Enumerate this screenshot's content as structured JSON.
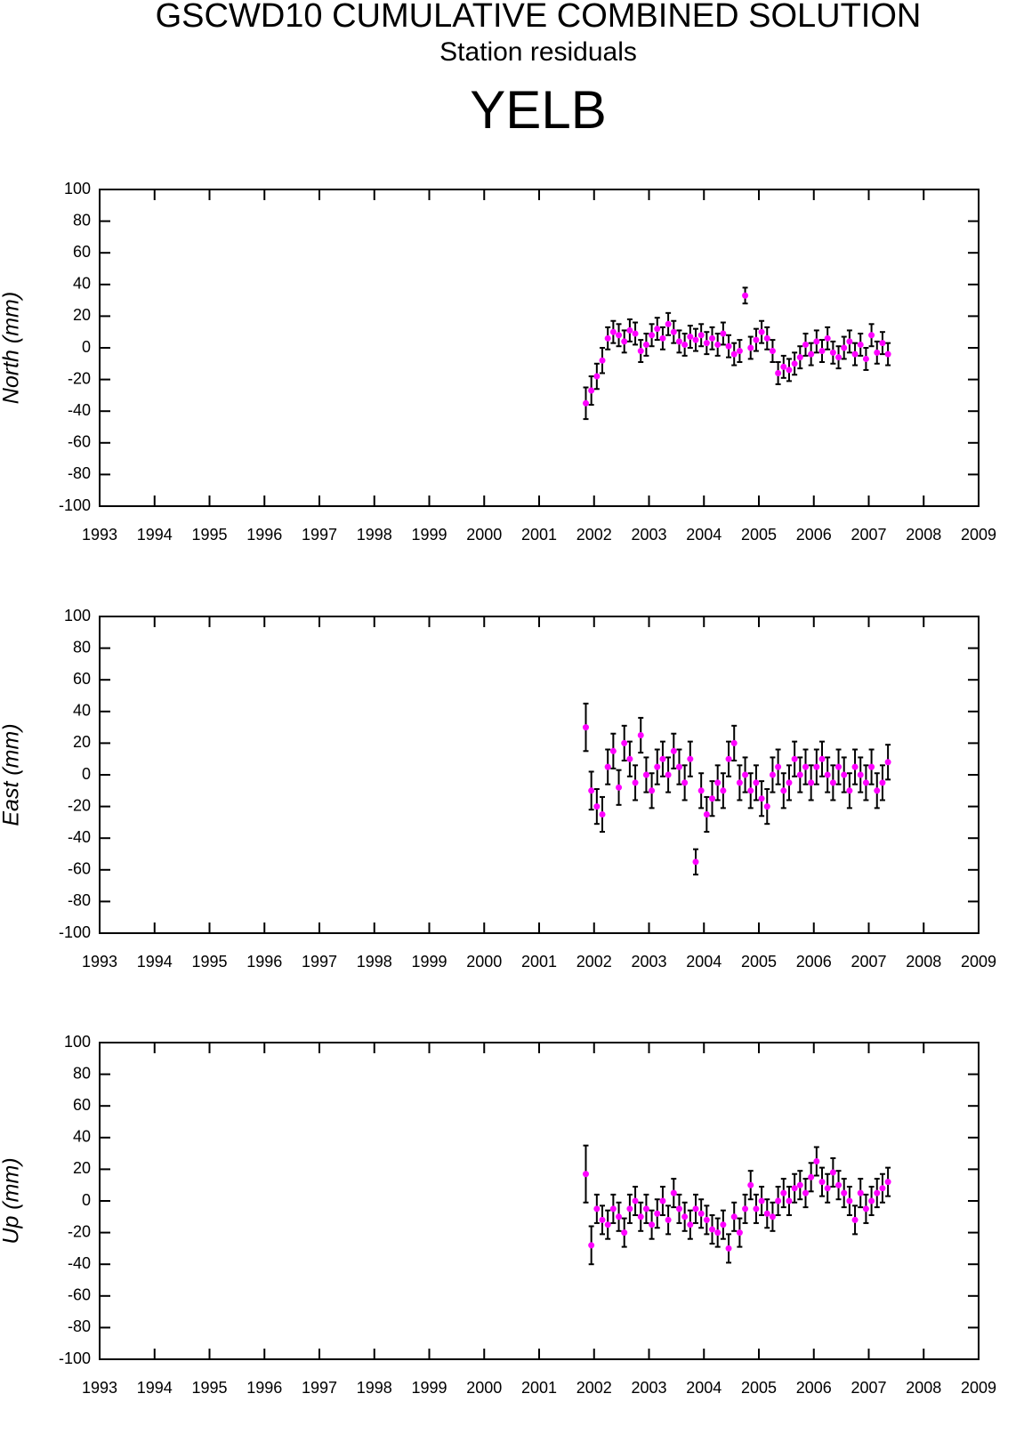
{
  "header": {
    "title": "GSCWD10 CUMULATIVE COMBINED SOLUTION",
    "subtitle": "Station residuals",
    "station": "YELB"
  },
  "chart_data": [
    {
      "type": "scatter",
      "ylabel": "North (mm)",
      "color": "#ff00ff",
      "error_color": "#000000",
      "xlim": [
        1993,
        2009
      ],
      "xticks": [
        1993,
        1994,
        1995,
        1996,
        1997,
        1998,
        1999,
        2000,
        2001,
        2002,
        2003,
        2004,
        2005,
        2006,
        2007,
        2008,
        2009
      ],
      "ylim": [
        -100,
        100
      ],
      "yticks": [
        -100,
        -80,
        -60,
        -40,
        -20,
        0,
        20,
        40,
        60,
        80,
        100
      ],
      "x": [
        2001.85,
        2001.95,
        2002.05,
        2002.15,
        2002.25,
        2002.35,
        2002.45,
        2002.55,
        2002.65,
        2002.75,
        2002.85,
        2002.95,
        2003.05,
        2003.15,
        2003.25,
        2003.35,
        2003.45,
        2003.55,
        2003.65,
        2003.75,
        2003.85,
        2003.95,
        2004.05,
        2004.15,
        2004.25,
        2004.35,
        2004.45,
        2004.55,
        2004.65,
        2004.75,
        2004.85,
        2004.95,
        2005.05,
        2005.15,
        2005.25,
        2005.35,
        2005.45,
        2005.55,
        2005.65,
        2005.75,
        2005.85,
        2005.95,
        2006.05,
        2006.15,
        2006.25,
        2006.35,
        2006.45,
        2006.55,
        2006.65,
        2006.75,
        2006.85,
        2006.95,
        2007.05,
        2007.15,
        2007.25,
        2007.35
      ],
      "values": [
        -35,
        -27,
        -18,
        -8,
        6,
        10,
        8,
        4,
        11,
        9,
        -2,
        2,
        8,
        12,
        6,
        15,
        10,
        4,
        2,
        7,
        5,
        8,
        3,
        6,
        2,
        9,
        1,
        -4,
        -2,
        33,
        0,
        5,
        10,
        6,
        -2,
        -16,
        -12,
        -14,
        -10,
        -6,
        2,
        -4,
        4,
        -2,
        6,
        -3,
        -6,
        0,
        4,
        -4,
        2,
        -7,
        8,
        -3,
        3,
        -4
      ],
      "errors": [
        10,
        9,
        8,
        8,
        7,
        7,
        7,
        7,
        7,
        7,
        7,
        7,
        7,
        7,
        7,
        7,
        7,
        7,
        7,
        7,
        7,
        7,
        7,
        7,
        7,
        7,
        7,
        7,
        7,
        5,
        7,
        7,
        7,
        7,
        7,
        7,
        7,
        7,
        7,
        7,
        7,
        7,
        7,
        7,
        7,
        7,
        7,
        7,
        7,
        7,
        7,
        7,
        7,
        7,
        7,
        7
      ]
    },
    {
      "type": "scatter",
      "ylabel": "East (mm)",
      "color": "#ff00ff",
      "error_color": "#000000",
      "xlim": [
        1993,
        2009
      ],
      "xticks": [
        1993,
        1994,
        1995,
        1996,
        1997,
        1998,
        1999,
        2000,
        2001,
        2002,
        2003,
        2004,
        2005,
        2006,
        2007,
        2008,
        2009
      ],
      "ylim": [
        -100,
        100
      ],
      "yticks": [
        -100,
        -80,
        -60,
        -40,
        -20,
        0,
        20,
        40,
        60,
        80,
        100
      ],
      "x": [
        2001.85,
        2001.95,
        2002.05,
        2002.15,
        2002.25,
        2002.35,
        2002.45,
        2002.55,
        2002.65,
        2002.75,
        2002.85,
        2002.95,
        2003.05,
        2003.15,
        2003.25,
        2003.35,
        2003.45,
        2003.55,
        2003.65,
        2003.75,
        2003.85,
        2003.95,
        2004.05,
        2004.15,
        2004.25,
        2004.35,
        2004.45,
        2004.55,
        2004.65,
        2004.75,
        2004.85,
        2004.95,
        2005.05,
        2005.15,
        2005.25,
        2005.35,
        2005.45,
        2005.55,
        2005.65,
        2005.75,
        2005.85,
        2005.95,
        2006.05,
        2006.15,
        2006.25,
        2006.35,
        2006.45,
        2006.55,
        2006.65,
        2006.75,
        2006.85,
        2006.95,
        2007.05,
        2007.15,
        2007.25,
        2007.35
      ],
      "values": [
        30,
        -10,
        -20,
        -25,
        5,
        15,
        -8,
        20,
        10,
        -5,
        25,
        0,
        -10,
        5,
        10,
        0,
        15,
        5,
        -5,
        10,
        -55,
        -10,
        -25,
        -15,
        -5,
        -10,
        10,
        20,
        -5,
        0,
        -10,
        -5,
        -15,
        -20,
        0,
        5,
        -10,
        -5,
        10,
        0,
        5,
        -5,
        5,
        10,
        0,
        -5,
        5,
        0,
        -10,
        5,
        0,
        -5,
        5,
        -10,
        -5,
        8
      ],
      "errors": [
        15,
        12,
        11,
        11,
        11,
        11,
        11,
        11,
        11,
        11,
        11,
        11,
        11,
        11,
        11,
        11,
        11,
        11,
        11,
        11,
        8,
        11,
        11,
        11,
        11,
        11,
        11,
        11,
        11,
        11,
        11,
        11,
        11,
        11,
        11,
        11,
        11,
        11,
        11,
        11,
        11,
        11,
        11,
        11,
        11,
        11,
        11,
        11,
        11,
        11,
        11,
        11,
        11,
        11,
        11,
        11
      ]
    },
    {
      "type": "scatter",
      "ylabel": "Up (mm)",
      "color": "#ff00ff",
      "error_color": "#000000",
      "xlim": [
        1993,
        2009
      ],
      "xticks": [
        1993,
        1994,
        1995,
        1996,
        1997,
        1998,
        1999,
        2000,
        2001,
        2002,
        2003,
        2004,
        2005,
        2006,
        2007,
        2008,
        2009
      ],
      "ylim": [
        -100,
        100
      ],
      "yticks": [
        -100,
        -80,
        -60,
        -40,
        -20,
        0,
        20,
        40,
        60,
        80,
        100
      ],
      "x": [
        2001.85,
        2001.95,
        2002.05,
        2002.15,
        2002.25,
        2002.35,
        2002.45,
        2002.55,
        2002.65,
        2002.75,
        2002.85,
        2002.95,
        2003.05,
        2003.15,
        2003.25,
        2003.35,
        2003.45,
        2003.55,
        2003.65,
        2003.75,
        2003.85,
        2003.95,
        2004.05,
        2004.15,
        2004.25,
        2004.35,
        2004.45,
        2004.55,
        2004.65,
        2004.75,
        2004.85,
        2004.95,
        2005.05,
        2005.15,
        2005.25,
        2005.35,
        2005.45,
        2005.55,
        2005.65,
        2005.75,
        2005.85,
        2005.95,
        2006.05,
        2006.15,
        2006.25,
        2006.35,
        2006.45,
        2006.55,
        2006.65,
        2006.75,
        2006.85,
        2006.95,
        2007.05,
        2007.15,
        2007.25,
        2007.35
      ],
      "values": [
        17,
        -28,
        -5,
        -12,
        -15,
        -5,
        -10,
        -20,
        -5,
        0,
        -10,
        -5,
        -15,
        -8,
        0,
        -12,
        5,
        -5,
        -10,
        -15,
        -5,
        -8,
        -12,
        -18,
        -20,
        -15,
        -30,
        -10,
        -20,
        -5,
        10,
        -5,
        0,
        -8,
        -10,
        0,
        5,
        0,
        8,
        10,
        5,
        15,
        25,
        12,
        8,
        18,
        10,
        5,
        0,
        -12,
        5,
        -5,
        0,
        5,
        8,
        12
      ],
      "errors": [
        18,
        12,
        9,
        9,
        9,
        9,
        9,
        9,
        9,
        9,
        9,
        9,
        9,
        9,
        9,
        9,
        9,
        9,
        9,
        9,
        9,
        9,
        9,
        9,
        9,
        9,
        9,
        9,
        9,
        9,
        9,
        9,
        9,
        9,
        9,
        9,
        9,
        9,
        9,
        9,
        9,
        9,
        9,
        9,
        9,
        9,
        9,
        9,
        9,
        9,
        9,
        9,
        9,
        9,
        9,
        9
      ]
    }
  ]
}
